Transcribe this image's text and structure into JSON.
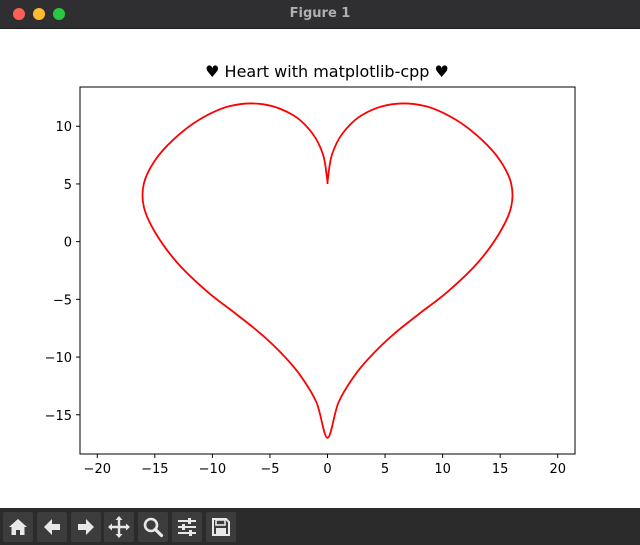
{
  "window": {
    "title": "Figure 1"
  },
  "toolbar": {
    "buttons": [
      {
        "name": "home-button",
        "icon": "home-icon"
      },
      {
        "name": "back-button",
        "icon": "arrow-left-icon"
      },
      {
        "name": "forward-button",
        "icon": "arrow-right-icon"
      },
      {
        "name": "pan-button",
        "icon": "move-icon"
      },
      {
        "name": "zoom-button",
        "icon": "magnifier-icon"
      },
      {
        "name": "configure-subplots-button",
        "icon": "sliders-icon"
      },
      {
        "name": "save-button",
        "icon": "floppy-disk-icon"
      }
    ]
  },
  "chart_data": {
    "type": "line",
    "title": "♥ Heart with matplotlib-cpp ♥",
    "xlabel": "",
    "ylabel": "",
    "xlim": [
      -21.5,
      21.5
    ],
    "ylim": [
      -18.4,
      13.4
    ],
    "xticks": [
      -20,
      -15,
      -10,
      -5,
      0,
      5,
      10,
      15,
      20
    ],
    "xtick_labels": [
      "−20",
      "−15",
      "−10",
      "−5",
      "0",
      "5",
      "10",
      "15",
      "20"
    ],
    "yticks": [
      -15,
      -10,
      -5,
      0,
      5,
      10
    ],
    "ytick_labels": [
      "−15",
      "−10",
      "−5",
      "0",
      "5",
      "10"
    ],
    "grid": false,
    "legend": false,
    "series": [
      {
        "color": "#ff0000",
        "x": [
          0,
          0.05,
          0.39,
          1.29,
          2.97,
          5.56,
          8.46,
          11.17,
          13.43,
          15.05,
          15.96,
          15.95,
          14.94,
          13.03,
          10.48,
          7.9,
          5.83,
          4.12,
          2.5,
          0.97,
          0,
          -0.97,
          -2.5,
          -4.12,
          -5.83,
          -7.9,
          -10.48,
          -13.03,
          -14.94,
          -15.95,
          -15.96,
          -15.05,
          -13.43,
          -11.17,
          -8.46,
          -5.56,
          -2.97,
          -1.29,
          -0.39,
          -0.05,
          0
        ],
        "y": [
          5.0,
          5.6,
          7.55,
          9.35,
          10.95,
          11.9,
          11.75,
          10.55,
          8.8,
          6.95,
          5.0,
          3.0,
          0.75,
          -1.85,
          -4.3,
          -6.3,
          -7.95,
          -9.55,
          -11.4,
          -13.9,
          -17.0,
          -13.9,
          -11.4,
          -9.55,
          -7.95,
          -6.3,
          -4.3,
          -1.85,
          0.75,
          3.0,
          5.0,
          6.95,
          8.8,
          10.55,
          11.75,
          11.9,
          10.95,
          9.35,
          7.55,
          5.6,
          5.0
        ]
      }
    ]
  }
}
